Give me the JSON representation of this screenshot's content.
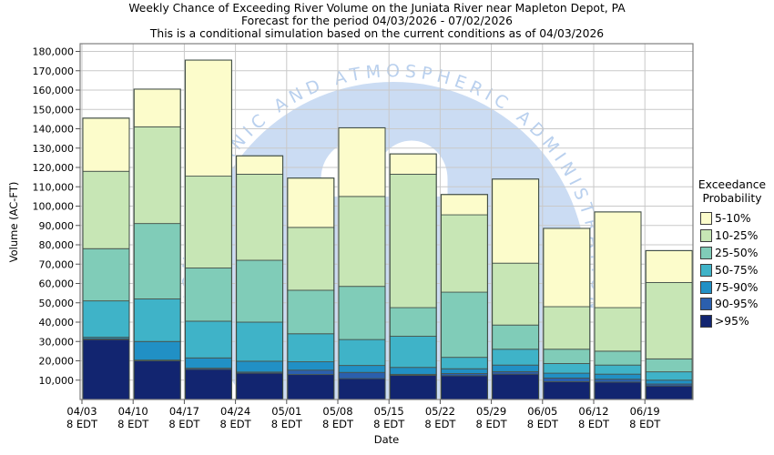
{
  "title": {
    "line1": "Weekly Chance of Exceeding River Volume on the Juniata River near Mapleton Depot, PA",
    "line2": "Forecast for the period 04/03/2026 - 07/02/2026",
    "line3": "This is a conditional simulation based on the current conditions as of 04/03/2026"
  },
  "watermark": {
    "text": "NATIONAL OCEANIC AND ATMOSPHERIC ADMINISTRATION",
    "dome_color": "#cbdcf3",
    "text_color": "#b9d0ee"
  },
  "legend": {
    "title_line1": "Exceedance",
    "title_line2": "Probability"
  },
  "chart_data": {
    "type": "bar",
    "stacked": true,
    "xlabel": "Date",
    "ylabel": "Volume (AC-FT)",
    "ylim": [
      0,
      184000
    ],
    "ytick_min": 10000,
    "ytick_max": 180000,
    "ytick_step": 10000,
    "grid": true,
    "legend_position": "right",
    "x_sublabel": "8 EDT",
    "bands": [
      {
        "label": "5-10%",
        "color": "#fcfccb",
        "from": "10",
        "to": "5"
      },
      {
        "label": "10-25%",
        "color": "#c7e6b5",
        "from": "25",
        "to": "10"
      },
      {
        "label": "25-50%",
        "color": "#80ccb8",
        "from": "50",
        "to": "25"
      },
      {
        "label": "50-75%",
        "color": "#3fb3c8",
        "from": "75",
        "to": "50"
      },
      {
        "label": "75-90%",
        "color": "#2190c5",
        "from": "90",
        "to": "75"
      },
      {
        "label": "90-95%",
        "color": "#2b5fad",
        "from": "95",
        "to": "90"
      },
      {
        "label": ">95%",
        "color": "#122570",
        "from": "0",
        "to": "95"
      }
    ],
    "bars": [
      {
        "date": "04/03",
        "time": "8 EDT",
        "levels": {
          "5": 145500,
          "10": 118000,
          "25": 78000,
          "50": 51000,
          "75": 32200,
          "90": 31400,
          "95": 31000
        }
      },
      {
        "date": "04/10",
        "time": "8 EDT",
        "levels": {
          "5": 160500,
          "10": 141000,
          "25": 91000,
          "50": 52000,
          "75": 30000,
          "90": 20400,
          "95": 20000
        }
      },
      {
        "date": "04/17",
        "time": "8 EDT",
        "levels": {
          "5": 175500,
          "10": 115500,
          "25": 68000,
          "50": 40500,
          "75": 21500,
          "90": 16200,
          "95": 15600
        }
      },
      {
        "date": "04/24",
        "time": "8 EDT",
        "levels": {
          "5": 126000,
          "10": 116500,
          "25": 72000,
          "50": 40000,
          "75": 19800,
          "90": 14200,
          "95": 13600
        }
      },
      {
        "date": "05/01",
        "time": "8 EDT",
        "levels": {
          "5": 114500,
          "10": 89000,
          "25": 56500,
          "50": 34000,
          "75": 19500,
          "90": 15200,
          "95": 12900
        }
      },
      {
        "date": "05/08",
        "time": "8 EDT",
        "levels": {
          "5": 140500,
          "10": 105000,
          "25": 58500,
          "50": 31000,
          "75": 17600,
          "90": 14000,
          "95": 10800
        }
      },
      {
        "date": "05/15",
        "time": "8 EDT",
        "levels": {
          "5": 127000,
          "10": 116500,
          "25": 47500,
          "50": 32700,
          "75": 16600,
          "90": 13000,
          "95": 12500
        }
      },
      {
        "date": "05/22",
        "time": "8 EDT",
        "levels": {
          "5": 106000,
          "10": 95500,
          "25": 55500,
          "50": 21800,
          "75": 15900,
          "90": 13400,
          "95": 12300
        }
      },
      {
        "date": "05/29",
        "time": "8 EDT",
        "levels": {
          "5": 114000,
          "10": 70500,
          "25": 38500,
          "50": 26000,
          "75": 17800,
          "90": 14400,
          "95": 13100
        }
      },
      {
        "date": "06/05",
        "time": "8 EDT",
        "levels": {
          "5": 88500,
          "10": 48000,
          "25": 26000,
          "50": 18600,
          "75": 13600,
          "90": 11100,
          "95": 9200
        }
      },
      {
        "date": "06/12",
        "time": "8 EDT",
        "levels": {
          "5": 97000,
          "10": 47500,
          "25": 25000,
          "50": 17800,
          "75": 13100,
          "90": 10500,
          "95": 9000
        }
      },
      {
        "date": "06/19",
        "time": "8 EDT",
        "levels": {
          "5": 77000,
          "10": 60500,
          "25": 21000,
          "50": 14300,
          "75": 10000,
          "90": 8000,
          "95": 7000
        }
      }
    ]
  },
  "colors": {
    "gridline": "#c9c9c9",
    "plot_border": "#7f7f7f",
    "bar_stroke": "#49564e",
    "tick": "#555555"
  }
}
